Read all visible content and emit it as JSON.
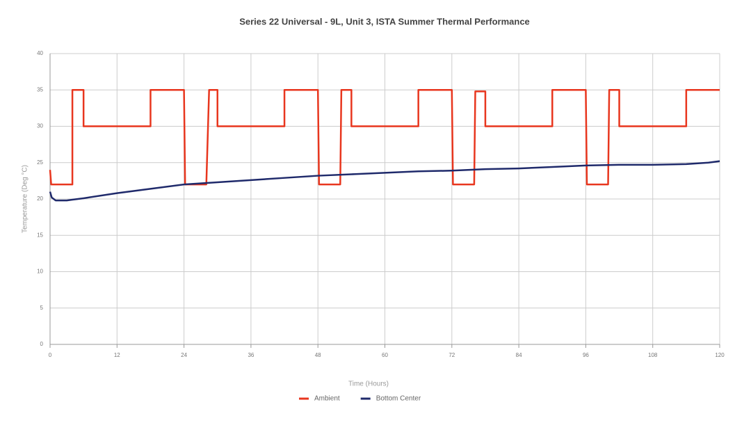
{
  "chart_data": {
    "type": "line",
    "title": "Series 22 Universal - 9L, Unit 3, ISTA Summer Thermal Performance",
    "x_label": "Time (Hours)",
    "y_label": "Temperature (Deg °C)",
    "xlim": [
      0,
      120
    ],
    "xticks": [
      0,
      12,
      24,
      36,
      48,
      60,
      72,
      84,
      96,
      108,
      120
    ],
    "ylim": [
      0,
      40
    ],
    "yticks": [
      0,
      5,
      10,
      15,
      20,
      25,
      30,
      35,
      40
    ],
    "grid": true,
    "legend": "bottom",
    "series": [
      {
        "name": "Ambient",
        "color": "#e8361e",
        "x": [
          0,
          0.2,
          4,
          4,
          6,
          6,
          18,
          18,
          24,
          24.2,
          28,
          28.5,
          30,
          30,
          42,
          42,
          48,
          48.2,
          52,
          52.2,
          54,
          54,
          66,
          66,
          72,
          72.2,
          76,
          76.2,
          78,
          78,
          90,
          90,
          96,
          96.2,
          100,
          100.2,
          102,
          102,
          114,
          114,
          120
        ],
        "values": [
          24,
          22,
          22,
          35,
          35,
          30,
          30,
          35,
          35,
          22,
          22,
          35,
          35,
          30,
          30,
          35,
          35,
          22,
          22,
          35,
          35,
          30,
          30,
          35,
          35,
          22,
          22,
          34.8,
          34.8,
          30,
          30,
          35,
          35,
          22,
          22,
          35,
          35,
          30,
          30,
          35,
          35
        ]
      },
      {
        "name": "Bottom Center",
        "color": "#1f2a6b",
        "x": [
          0,
          0.3,
          1,
          3,
          4,
          6,
          12,
          18,
          24,
          30,
          36,
          42,
          48,
          54,
          60,
          66,
          72,
          78,
          84,
          90,
          96,
          102,
          108,
          114,
          118,
          120
        ],
        "values": [
          21,
          20.2,
          19.8,
          19.8,
          19.9,
          20.1,
          20.8,
          21.4,
          22.0,
          22.3,
          22.6,
          22.9,
          23.2,
          23.4,
          23.6,
          23.8,
          23.9,
          24.1,
          24.2,
          24.4,
          24.6,
          24.7,
          24.7,
          24.8,
          25.0,
          25.2
        ]
      }
    ]
  }
}
